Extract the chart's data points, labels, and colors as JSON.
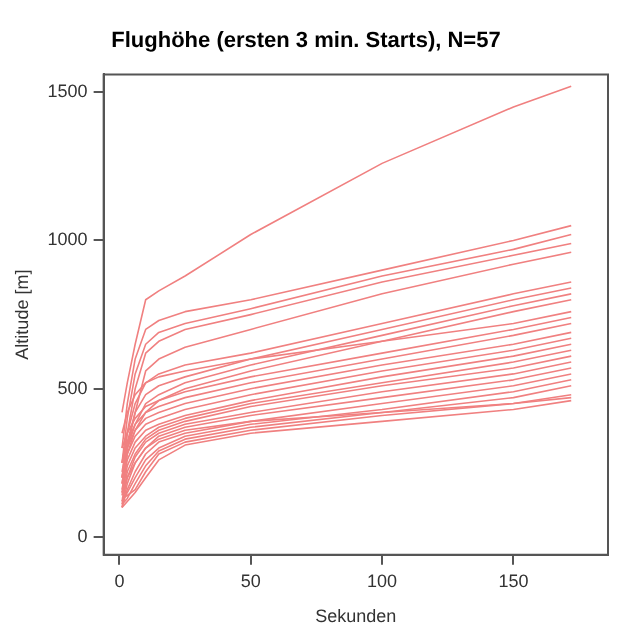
{
  "chart_data": {
    "type": "line",
    "title": "Flughöhe (ersten 3 min. Starts), N=57",
    "xlabel": "Sekunden",
    "ylabel": "Altitude [m]",
    "x": [
      1,
      3,
      6,
      10,
      15,
      25,
      50,
      100,
      150,
      172
    ],
    "xlim": [
      -6,
      186
    ],
    "xticks": [
      0,
      50,
      100,
      150
    ],
    "ylim": [
      -60,
      1560
    ],
    "yticks": [
      0,
      500,
      1000,
      1500
    ],
    "legend": false,
    "marker": "none",
    "line_style": "solid",
    "series": [
      {
        "color": "#f08080",
        "values": [
          420,
          520,
          650,
          800,
          830,
          880,
          1020,
          1260,
          1450,
          1520
        ]
      },
      {
        "color": "#f08080",
        "values": [
          300,
          450,
          600,
          700,
          730,
          760,
          800,
          900,
          1000,
          1050
        ]
      },
      {
        "color": "#f08080",
        "values": [
          250,
          400,
          550,
          650,
          690,
          720,
          770,
          880,
          970,
          1020
        ]
      },
      {
        "color": "#f08080",
        "values": [
          200,
          350,
          500,
          620,
          660,
          700,
          750,
          860,
          950,
          990
        ]
      },
      {
        "color": "#f08080",
        "values": [
          180,
          300,
          420,
          560,
          600,
          640,
          700,
          820,
          920,
          960
        ]
      },
      {
        "color": "#f08080",
        "values": [
          250,
          350,
          450,
          520,
          550,
          580,
          620,
          720,
          820,
          860
        ]
      },
      {
        "color": "#f08080",
        "values": [
          220,
          320,
          420,
          480,
          510,
          540,
          600,
          700,
          800,
          840
        ]
      },
      {
        "color": "#f08080",
        "values": [
          200,
          300,
          380,
          450,
          480,
          520,
          580,
          680,
          780,
          820
        ]
      },
      {
        "color": "#f08080",
        "values": [
          150,
          280,
          360,
          420,
          460,
          500,
          560,
          660,
          760,
          800
        ]
      },
      {
        "color": "#f08080",
        "values": [
          300,
          350,
          400,
          440,
          460,
          490,
          540,
          620,
          700,
          740
        ]
      },
      {
        "color": "#f08080",
        "values": [
          250,
          320,
          380,
          420,
          440,
          470,
          520,
          600,
          680,
          720
        ]
      },
      {
        "color": "#f08080",
        "values": [
          200,
          300,
          360,
          400,
          420,
          450,
          500,
          580,
          650,
          690
        ]
      },
      {
        "color": "#f08080",
        "values": [
          180,
          280,
          340,
          380,
          400,
          430,
          480,
          560,
          630,
          670
        ]
      },
      {
        "color": "#f08080",
        "values": [
          160,
          260,
          320,
          360,
          380,
          410,
          460,
          540,
          610,
          650
        ]
      },
      {
        "color": "#f08080",
        "values": [
          140,
          240,
          300,
          340,
          370,
          400,
          450,
          520,
          590,
          630
        ]
      },
      {
        "color": "#f08080",
        "values": [
          120,
          220,
          280,
          330,
          360,
          390,
          440,
          510,
          570,
          610
        ]
      },
      {
        "color": "#f08080",
        "values": [
          110,
          200,
          270,
          320,
          350,
          380,
          420,
          490,
          550,
          590
        ]
      },
      {
        "color": "#f08080",
        "values": [
          100,
          180,
          250,
          300,
          340,
          370,
          410,
          470,
          530,
          570
        ]
      },
      {
        "color": "#f08080",
        "values": [
          100,
          160,
          220,
          280,
          320,
          350,
          390,
          450,
          510,
          550
        ]
      },
      {
        "color": "#f08080",
        "values": [
          120,
          150,
          200,
          260,
          300,
          340,
          380,
          430,
          490,
          530
        ]
      },
      {
        "color": "#f08080",
        "values": [
          110,
          130,
          180,
          240,
          290,
          330,
          370,
          420,
          470,
          510
        ]
      },
      {
        "color": "#f08080",
        "values": [
          130,
          140,
          160,
          220,
          280,
          320,
          360,
          410,
          450,
          480
        ]
      },
      {
        "color": "#f08080",
        "values": [
          150,
          200,
          250,
          300,
          330,
          360,
          390,
          420,
          450,
          470
        ]
      },
      {
        "color": "#f08080",
        "values": [
          100,
          120,
          150,
          200,
          260,
          310,
          350,
          390,
          430,
          460
        ]
      },
      {
        "color": "#f08080",
        "values": [
          350,
          420,
          480,
          520,
          540,
          560,
          600,
          660,
          720,
          760
        ]
      }
    ]
  }
}
